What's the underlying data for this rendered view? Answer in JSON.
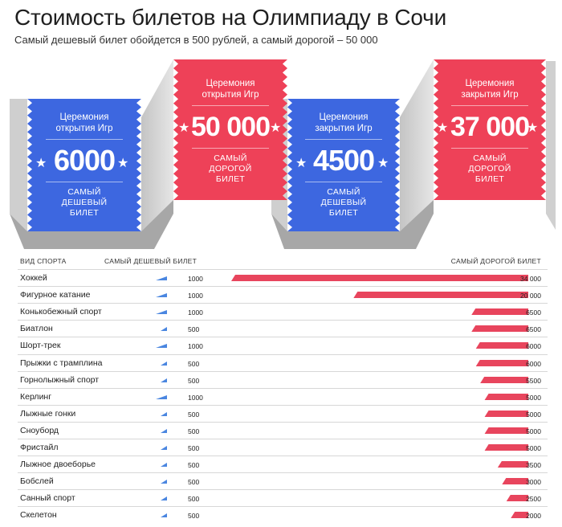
{
  "header": {
    "title": "Стоимость билетов на Олимпиаду в Сочи",
    "subtitle": "Самый дешевый билет обойдется в 500 рублей, а самый дорогой – 50 000"
  },
  "tickets": [
    {
      "caption": "Церемония открытия Игр",
      "value": "6000",
      "sub": "САМЫЙ ДЕШЕВЫЙ БИЛЕТ",
      "color": "#3d67e0"
    },
    {
      "caption": "Церемония открытия Игр",
      "value": "50 000",
      "sub": "САМЫЙ ДОРОГОЙ БИЛЕТ",
      "color": "#ee4158"
    },
    {
      "caption": "Церемония закрытия Игр",
      "value": "4500",
      "sub": "САМЫЙ ДЕШЕВЫЙ БИЛЕТ",
      "color": "#3d67e0"
    },
    {
      "caption": "Церемония закрытия Игр",
      "value": "37 000",
      "sub": "САМЫЙ ДОРОГОЙ БИЛЕТ",
      "color": "#ee4158"
    }
  ],
  "colors": {
    "blue": "#3d67e0",
    "red": "#ee4158",
    "gray_light": "#d9d9d9",
    "gray_dark": "#a9a9a9",
    "mini_blue": "#4a86e0",
    "bar_red": "#e8455d"
  },
  "table": {
    "col_sport": "ВИД СПОРТА",
    "col_min": "САМЫЙ ДЕШЕВЫЙ БИЛЕТ",
    "col_max": "САМЫЙ ДОРОГОЙ БИЛЕТ"
  },
  "chart_data": {
    "type": "bar",
    "categories": [
      "Хоккей",
      "Фигурное катание",
      "Конькобежный спорт",
      "Биатлон",
      "Шорт-трек",
      "Прыжки с трамплина",
      "Горнолыжный спорт",
      "Керлинг",
      "Лыжные гонки",
      "Сноуборд",
      "Фристайл",
      "Лыжное двоеборье",
      "Бобслей",
      "Санный спорт",
      "Скелетон"
    ],
    "series": [
      {
        "name": "САМЫЙ ДЕШЕВЫЙ БИЛЕТ",
        "values": [
          1000,
          1000,
          1000,
          500,
          1000,
          500,
          500,
          1000,
          500,
          500,
          500,
          500,
          500,
          500,
          500
        ]
      },
      {
        "name": "САМЫЙ ДОРОГОЙ БИЛЕТ",
        "values": [
          34000,
          20000,
          6500,
          6500,
          6000,
          6000,
          5500,
          5000,
          5000,
          5000,
          5000,
          3500,
          3000,
          2500,
          2000
        ]
      }
    ],
    "min_labels": [
      "1000",
      "1000",
      "1000",
      "500",
      "1000",
      "500",
      "500",
      "1000",
      "500",
      "500",
      "500",
      "500",
      "500",
      "500",
      "500"
    ],
    "max_labels": [
      "34 000",
      "20 000",
      "6500",
      "6500",
      "6000",
      "6000",
      "5500",
      "5000",
      "5000",
      "5000",
      "5000",
      "3500",
      "3000",
      "2500",
      "2000"
    ]
  }
}
